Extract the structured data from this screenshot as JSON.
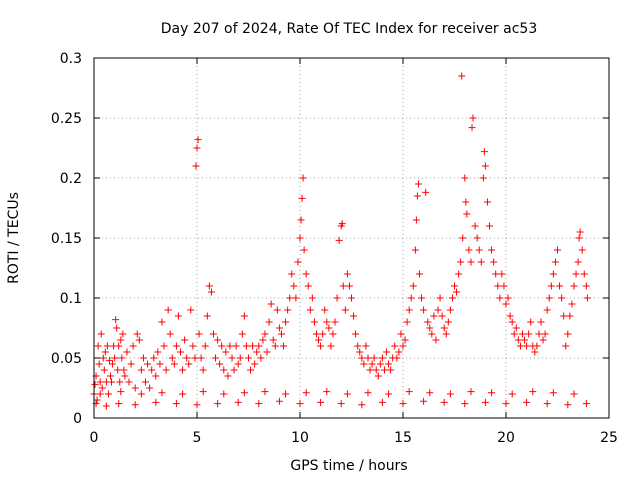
{
  "chart_data": {
    "type": "scatter",
    "title": "Day 207 of 2024, Rate Of TEC Index for receiver ac53",
    "xlabel": "GPS time / hours",
    "ylabel": "ROTI / TECUs",
    "xlim": [
      0,
      25
    ],
    "ylim": [
      0,
      0.3
    ],
    "x_ticks": [
      0,
      5,
      10,
      15,
      20,
      25
    ],
    "y_ticks": [
      0,
      0.05,
      0.1,
      0.15,
      0.2,
      0.25,
      0.3
    ],
    "x_tick_labels": [
      "0",
      "5",
      "10",
      "15",
      "20",
      "25"
    ],
    "y_tick_labels": [
      "0",
      "0.05",
      "0.1",
      "0.15",
      "0.2",
      "0.25",
      "0.3"
    ],
    "grid": true,
    "legend": "none",
    "marker": "plus",
    "color": "#ff0000",
    "series": [
      {
        "points": [
          [
            0.0,
            0.02
          ],
          [
            0.05,
            0.028
          ],
          [
            0.1,
            0.035
          ],
          [
            0.15,
            0.015
          ],
          [
            0.2,
            0.06
          ],
          [
            0.25,
            0.045
          ],
          [
            0.3,
            0.03
          ],
          [
            0.35,
            0.07
          ],
          [
            0.4,
            0.025
          ],
          [
            0.45,
            0.05
          ],
          [
            0.5,
            0.04
          ],
          [
            0.55,
            0.055
          ],
          [
            0.6,
            0.03
          ],
          [
            0.65,
            0.06
          ],
          [
            0.7,
            0.02
          ],
          [
            0.75,
            0.048
          ],
          [
            0.8,
            0.035
          ],
          [
            0.85,
            0.03
          ],
          [
            0.9,
            0.045
          ],
          [
            0.95,
            0.06
          ],
          [
            1.0,
            0.05
          ],
          [
            1.05,
            0.082
          ],
          [
            1.1,
            0.075
          ],
          [
            1.15,
            0.04
          ],
          [
            1.2,
            0.06
          ],
          [
            1.25,
            0.03
          ],
          [
            1.3,
            0.065
          ],
          [
            1.35,
            0.05
          ],
          [
            1.4,
            0.07
          ],
          [
            1.45,
            0.04
          ],
          [
            1.5,
            0.035
          ],
          [
            1.6,
            0.055
          ],
          [
            1.7,
            0.03
          ],
          [
            1.8,
            0.045
          ],
          [
            1.9,
            0.06
          ],
          [
            2.0,
            0.025
          ],
          [
            2.1,
            0.07
          ],
          [
            2.2,
            0.065
          ],
          [
            2.3,
            0.04
          ],
          [
            2.4,
            0.05
          ],
          [
            2.5,
            0.03
          ],
          [
            2.6,
            0.045
          ],
          [
            2.7,
            0.025
          ],
          [
            2.8,
            0.04
          ],
          [
            2.9,
            0.05
          ],
          [
            3.0,
            0.035
          ],
          [
            3.1,
            0.055
          ],
          [
            3.2,
            0.045
          ],
          [
            3.3,
            0.08
          ],
          [
            3.4,
            0.06
          ],
          [
            3.5,
            0.04
          ],
          [
            3.6,
            0.09
          ],
          [
            3.7,
            0.07
          ],
          [
            3.8,
            0.05
          ],
          [
            3.9,
            0.045
          ],
          [
            4.0,
            0.06
          ],
          [
            4.1,
            0.085
          ],
          [
            4.2,
            0.055
          ],
          [
            4.3,
            0.04
          ],
          [
            4.4,
            0.065
          ],
          [
            4.5,
            0.05
          ],
          [
            4.6,
            0.045
          ],
          [
            4.7,
            0.09
          ],
          [
            4.8,
            0.06
          ],
          [
            4.9,
            0.05
          ],
          [
            4.95,
            0.21
          ],
          [
            5.0,
            0.225
          ],
          [
            5.05,
            0.232
          ],
          [
            5.1,
            0.07
          ],
          [
            5.2,
            0.05
          ],
          [
            5.3,
            0.04
          ],
          [
            5.4,
            0.06
          ],
          [
            5.5,
            0.085
          ],
          [
            5.6,
            0.11
          ],
          [
            5.7,
            0.105
          ],
          [
            5.8,
            0.07
          ],
          [
            5.9,
            0.05
          ],
          [
            6.0,
            0.065
          ],
          [
            6.1,
            0.045
          ],
          [
            6.2,
            0.06
          ],
          [
            6.3,
            0.04
          ],
          [
            6.4,
            0.055
          ],
          [
            6.5,
            0.035
          ],
          [
            6.6,
            0.06
          ],
          [
            6.7,
            0.05
          ],
          [
            6.8,
            0.04
          ],
          [
            6.9,
            0.06
          ],
          [
            7.0,
            0.045
          ],
          [
            7.1,
            0.05
          ],
          [
            7.2,
            0.07
          ],
          [
            7.3,
            0.085
          ],
          [
            7.4,
            0.06
          ],
          [
            7.5,
            0.05
          ],
          [
            7.6,
            0.04
          ],
          [
            7.7,
            0.06
          ],
          [
            7.8,
            0.045
          ],
          [
            7.9,
            0.055
          ],
          [
            8.0,
            0.06
          ],
          [
            8.1,
            0.05
          ],
          [
            8.2,
            0.065
          ],
          [
            8.3,
            0.07
          ],
          [
            8.4,
            0.055
          ],
          [
            8.5,
            0.08
          ],
          [
            8.6,
            0.095
          ],
          [
            8.7,
            0.065
          ],
          [
            8.8,
            0.06
          ],
          [
            8.9,
            0.09
          ],
          [
            9.0,
            0.075
          ],
          [
            9.1,
            0.07
          ],
          [
            9.2,
            0.06
          ],
          [
            9.3,
            0.08
          ],
          [
            9.4,
            0.09
          ],
          [
            9.5,
            0.1
          ],
          [
            9.6,
            0.12
          ],
          [
            9.7,
            0.11
          ],
          [
            9.8,
            0.1
          ],
          [
            9.9,
            0.13
          ],
          [
            10.0,
            0.15
          ],
          [
            10.05,
            0.165
          ],
          [
            10.1,
            0.183
          ],
          [
            10.15,
            0.2
          ],
          [
            10.2,
            0.14
          ],
          [
            10.3,
            0.12
          ],
          [
            10.4,
            0.11
          ],
          [
            10.5,
            0.09
          ],
          [
            10.6,
            0.1
          ],
          [
            10.7,
            0.08
          ],
          [
            10.8,
            0.07
          ],
          [
            10.9,
            0.065
          ],
          [
            11.0,
            0.06
          ],
          [
            11.1,
            0.07
          ],
          [
            11.2,
            0.09
          ],
          [
            11.3,
            0.08
          ],
          [
            11.4,
            0.075
          ],
          [
            11.5,
            0.06
          ],
          [
            11.6,
            0.07
          ],
          [
            11.7,
            0.08
          ],
          [
            11.8,
            0.1
          ],
          [
            11.9,
            0.148
          ],
          [
            12.0,
            0.16
          ],
          [
            12.05,
            0.162
          ],
          [
            12.1,
            0.11
          ],
          [
            12.2,
            0.09
          ],
          [
            12.3,
            0.12
          ],
          [
            12.4,
            0.11
          ],
          [
            12.5,
            0.1
          ],
          [
            12.6,
            0.085
          ],
          [
            12.7,
            0.07
          ],
          [
            12.8,
            0.06
          ],
          [
            12.9,
            0.055
          ],
          [
            13.0,
            0.05
          ],
          [
            13.1,
            0.045
          ],
          [
            13.2,
            0.06
          ],
          [
            13.3,
            0.05
          ],
          [
            13.4,
            0.04
          ],
          [
            13.5,
            0.045
          ],
          [
            13.6,
            0.05
          ],
          [
            13.7,
            0.04
          ],
          [
            13.8,
            0.035
          ],
          [
            13.9,
            0.045
          ],
          [
            14.0,
            0.05
          ],
          [
            14.1,
            0.04
          ],
          [
            14.2,
            0.055
          ],
          [
            14.3,
            0.045
          ],
          [
            14.4,
            0.04
          ],
          [
            14.5,
            0.05
          ],
          [
            14.6,
            0.06
          ],
          [
            14.7,
            0.05
          ],
          [
            14.8,
            0.055
          ],
          [
            14.9,
            0.07
          ],
          [
            15.0,
            0.06
          ],
          [
            15.1,
            0.065
          ],
          [
            15.2,
            0.08
          ],
          [
            15.3,
            0.09
          ],
          [
            15.4,
            0.1
          ],
          [
            15.5,
            0.11
          ],
          [
            15.6,
            0.14
          ],
          [
            15.65,
            0.165
          ],
          [
            15.7,
            0.185
          ],
          [
            15.75,
            0.195
          ],
          [
            15.8,
            0.12
          ],
          [
            15.9,
            0.1
          ],
          [
            16.0,
            0.09
          ],
          [
            16.1,
            0.188
          ],
          [
            16.2,
            0.08
          ],
          [
            16.3,
            0.075
          ],
          [
            16.4,
            0.07
          ],
          [
            16.5,
            0.085
          ],
          [
            16.6,
            0.065
          ],
          [
            16.7,
            0.09
          ],
          [
            16.8,
            0.1
          ],
          [
            16.9,
            0.085
          ],
          [
            17.0,
            0.075
          ],
          [
            17.1,
            0.07
          ],
          [
            17.2,
            0.08
          ],
          [
            17.3,
            0.09
          ],
          [
            17.4,
            0.1
          ],
          [
            17.5,
            0.11
          ],
          [
            17.6,
            0.105
          ],
          [
            17.7,
            0.12
          ],
          [
            17.8,
            0.13
          ],
          [
            17.85,
            0.285
          ],
          [
            17.9,
            0.15
          ],
          [
            18.0,
            0.2
          ],
          [
            18.05,
            0.18
          ],
          [
            18.1,
            0.17
          ],
          [
            18.2,
            0.14
          ],
          [
            18.3,
            0.13
          ],
          [
            18.35,
            0.242
          ],
          [
            18.4,
            0.25
          ],
          [
            18.5,
            0.16
          ],
          [
            18.6,
            0.15
          ],
          [
            18.7,
            0.14
          ],
          [
            18.8,
            0.13
          ],
          [
            18.9,
            0.2
          ],
          [
            18.95,
            0.222
          ],
          [
            19.0,
            0.21
          ],
          [
            19.1,
            0.18
          ],
          [
            19.2,
            0.16
          ],
          [
            19.3,
            0.14
          ],
          [
            19.4,
            0.13
          ],
          [
            19.5,
            0.12
          ],
          [
            19.6,
            0.11
          ],
          [
            19.7,
            0.1
          ],
          [
            19.8,
            0.12
          ],
          [
            19.9,
            0.11
          ],
          [
            20.0,
            0.095
          ],
          [
            20.1,
            0.1
          ],
          [
            20.2,
            0.085
          ],
          [
            20.3,
            0.08
          ],
          [
            20.4,
            0.07
          ],
          [
            20.5,
            0.075
          ],
          [
            20.6,
            0.065
          ],
          [
            20.7,
            0.06
          ],
          [
            20.8,
            0.07
          ],
          [
            20.9,
            0.065
          ],
          [
            21.0,
            0.06
          ],
          [
            21.1,
            0.07
          ],
          [
            21.2,
            0.08
          ],
          [
            21.3,
            0.06
          ],
          [
            21.4,
            0.055
          ],
          [
            21.5,
            0.06
          ],
          [
            21.6,
            0.07
          ],
          [
            21.7,
            0.08
          ],
          [
            21.8,
            0.065
          ],
          [
            21.9,
            0.07
          ],
          [
            22.0,
            0.09
          ],
          [
            22.1,
            0.1
          ],
          [
            22.2,
            0.11
          ],
          [
            22.3,
            0.12
          ],
          [
            22.4,
            0.13
          ],
          [
            22.5,
            0.14
          ],
          [
            22.6,
            0.11
          ],
          [
            22.7,
            0.1
          ],
          [
            22.8,
            0.085
          ],
          [
            22.9,
            0.06
          ],
          [
            23.0,
            0.07
          ],
          [
            23.1,
            0.085
          ],
          [
            23.2,
            0.095
          ],
          [
            23.3,
            0.11
          ],
          [
            23.4,
            0.12
          ],
          [
            23.5,
            0.13
          ],
          [
            23.55,
            0.15
          ],
          [
            23.6,
            0.155
          ],
          [
            23.7,
            0.14
          ],
          [
            23.8,
            0.12
          ],
          [
            23.9,
            0.11
          ],
          [
            23.95,
            0.1
          ],
          [
            0.1,
            0.012
          ],
          [
            0.6,
            0.01
          ],
          [
            1.2,
            0.012
          ],
          [
            2.0,
            0.011
          ],
          [
            3.0,
            0.013
          ],
          [
            4.0,
            0.012
          ],
          [
            5.0,
            0.011
          ],
          [
            6.0,
            0.012
          ],
          [
            7.0,
            0.013
          ],
          [
            8.0,
            0.012
          ],
          [
            9.0,
            0.014
          ],
          [
            10.0,
            0.012
          ],
          [
            11.0,
            0.013
          ],
          [
            12.0,
            0.012
          ],
          [
            13.0,
            0.011
          ],
          [
            14.0,
            0.013
          ],
          [
            15.0,
            0.012
          ],
          [
            16.0,
            0.014
          ],
          [
            17.0,
            0.013
          ],
          [
            18.0,
            0.012
          ],
          [
            19.0,
            0.013
          ],
          [
            20.0,
            0.012
          ],
          [
            21.0,
            0.013
          ],
          [
            22.0,
            0.012
          ],
          [
            23.0,
            0.011
          ],
          [
            23.9,
            0.012
          ],
          [
            0.3,
            0.02
          ],
          [
            1.3,
            0.022
          ],
          [
            2.3,
            0.02
          ],
          [
            3.3,
            0.021
          ],
          [
            4.3,
            0.02
          ],
          [
            5.3,
            0.022
          ],
          [
            6.3,
            0.02
          ],
          [
            7.3,
            0.021
          ],
          [
            8.3,
            0.022
          ],
          [
            9.3,
            0.02
          ],
          [
            10.3,
            0.021
          ],
          [
            11.3,
            0.022
          ],
          [
            12.3,
            0.02
          ],
          [
            13.3,
            0.021
          ],
          [
            14.3,
            0.02
          ],
          [
            15.3,
            0.022
          ],
          [
            16.3,
            0.021
          ],
          [
            17.3,
            0.02
          ],
          [
            18.3,
            0.022
          ],
          [
            19.3,
            0.021
          ],
          [
            20.3,
            0.02
          ],
          [
            21.3,
            0.022
          ],
          [
            22.3,
            0.021
          ],
          [
            23.3,
            0.02
          ]
        ]
      }
    ]
  }
}
